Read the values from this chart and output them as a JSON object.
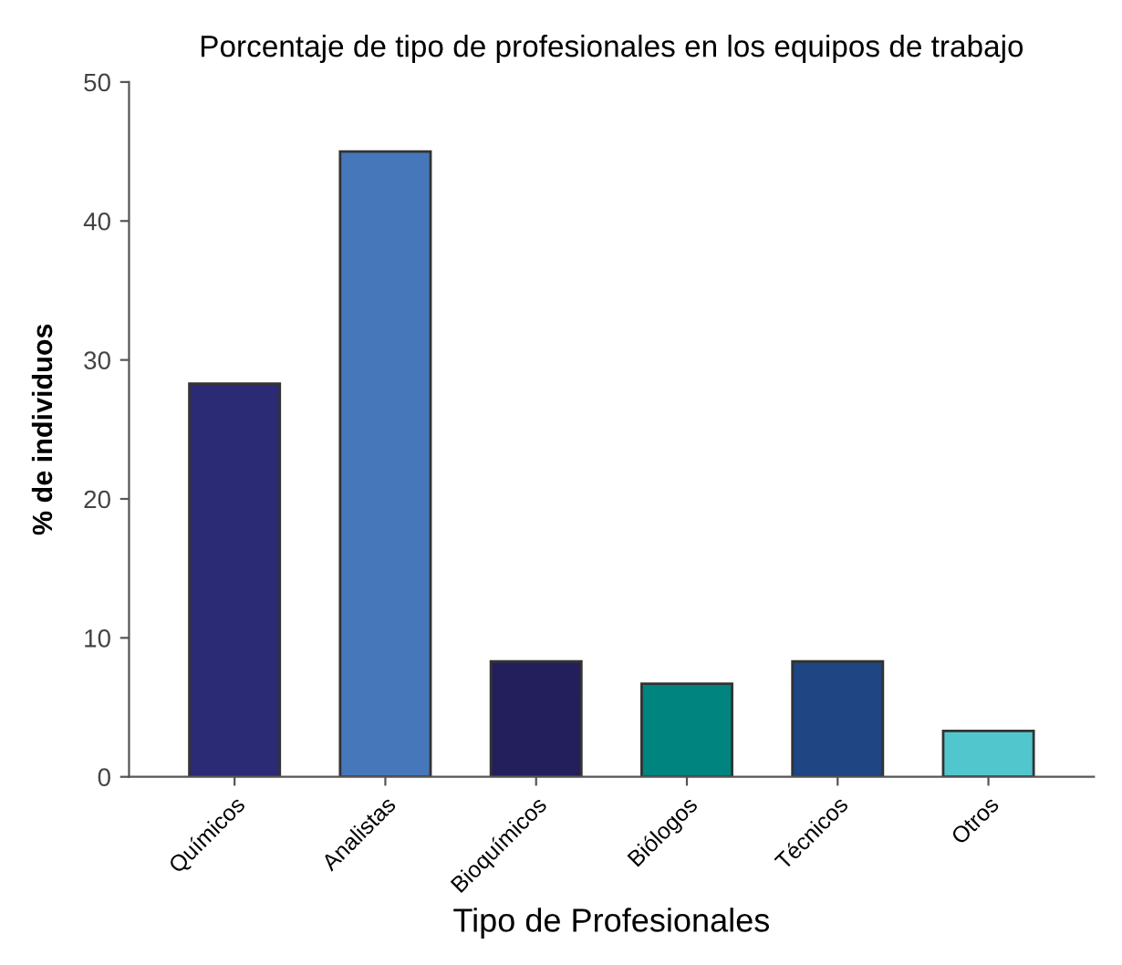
{
  "chart_data": {
    "type": "bar",
    "title": "Porcentaje de tipo de profesionales en los equipos de trabajo",
    "xlabel": "Tipo de Profesionales",
    "ylabel": "% de individuos",
    "categories": [
      "Químicos",
      "Analistas",
      "Bioquímicos",
      "Biólogos",
      "Técnicos",
      "Otros"
    ],
    "values": [
      28.3,
      45,
      8.3,
      6.7,
      8.3,
      3.3
    ],
    "colors": [
      "#2a2a75",
      "#4677bb",
      "#221f5c",
      "#00847f",
      "#1f4582",
      "#52c6cd"
    ],
    "ylim": [
      0,
      50
    ],
    "yticks": [
      0,
      10,
      20,
      30,
      40,
      50
    ],
    "grid": false
  }
}
